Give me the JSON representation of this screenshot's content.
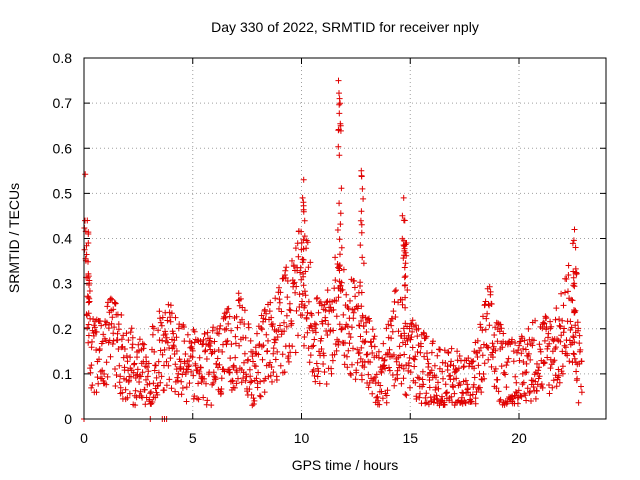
{
  "chart_data": {
    "type": "scatter",
    "title": "Day 330 of 2022, SRMTID for receiver nply",
    "xlabel": "GPS time / hours",
    "ylabel": "SRMTID / TECUs",
    "xlim": [
      0,
      24
    ],
    "ylim": [
      0,
      0.8
    ],
    "x_ticks": [
      0,
      5,
      10,
      15,
      20
    ],
    "y_ticks": [
      0,
      0.1,
      0.2,
      0.3,
      0.4,
      0.5,
      0.6,
      0.7,
      0.8
    ],
    "grid": true,
    "marker": "+",
    "color": "#e00000",
    "series": [
      {
        "name": "SRMTID",
        "envelope": [
          [
            0.0,
            0.44
          ],
          [
            0.1,
            0.35
          ],
          [
            0.3,
            0.15
          ],
          [
            0.6,
            0.13
          ],
          [
            1.0,
            0.14
          ],
          [
            1.3,
            0.2
          ],
          [
            1.6,
            0.15
          ],
          [
            2.0,
            0.12
          ],
          [
            2.5,
            0.11
          ],
          [
            2.8,
            0.1
          ],
          [
            3.2,
            0.12
          ],
          [
            3.5,
            0.16
          ],
          [
            3.9,
            0.17
          ],
          [
            4.3,
            0.13
          ],
          [
            4.8,
            0.12
          ],
          [
            5.3,
            0.1
          ],
          [
            5.8,
            0.11
          ],
          [
            6.3,
            0.13
          ],
          [
            6.8,
            0.16
          ],
          [
            7.2,
            0.18
          ],
          [
            7.7,
            0.1
          ],
          [
            8.1,
            0.13
          ],
          [
            8.5,
            0.17
          ],
          [
            9.0,
            0.2
          ],
          [
            9.5,
            0.24
          ],
          [
            10.0,
            0.3
          ],
          [
            10.3,
            0.27
          ],
          [
            10.6,
            0.18
          ],
          [
            11.0,
            0.16
          ],
          [
            11.4,
            0.2
          ],
          [
            11.7,
            0.3
          ],
          [
            12.0,
            0.2
          ],
          [
            12.4,
            0.2
          ],
          [
            12.8,
            0.18
          ],
          [
            13.2,
            0.12
          ],
          [
            13.6,
            0.08
          ],
          [
            14.0,
            0.13
          ],
          [
            14.4,
            0.2
          ],
          [
            14.8,
            0.14
          ],
          [
            15.3,
            0.12
          ],
          [
            15.8,
            0.1
          ],
          [
            16.3,
            0.08
          ],
          [
            16.8,
            0.08
          ],
          [
            17.3,
            0.07
          ],
          [
            17.8,
            0.06
          ],
          [
            18.2,
            0.12
          ],
          [
            18.6,
            0.2
          ],
          [
            19.0,
            0.13
          ],
          [
            19.5,
            0.1
          ],
          [
            20.0,
            0.09
          ],
          [
            20.5,
            0.13
          ],
          [
            21.0,
            0.14
          ],
          [
            21.5,
            0.15
          ],
          [
            22.0,
            0.18
          ],
          [
            22.3,
            0.25
          ],
          [
            22.6,
            0.14
          ],
          [
            22.9,
            0.1
          ]
        ],
        "peaks": [
          {
            "x": 0.15,
            "y": 0.44
          },
          {
            "x": 0.2,
            "y": 0.41
          },
          {
            "x": 10.1,
            "y": 0.53
          },
          {
            "x": 10.05,
            "y": 0.49
          },
          {
            "x": 11.7,
            "y": 0.75
          },
          {
            "x": 11.75,
            "y": 0.71
          },
          {
            "x": 11.8,
            "y": 0.65
          },
          {
            "x": 12.75,
            "y": 0.55
          },
          {
            "x": 12.8,
            "y": 0.51
          },
          {
            "x": 14.7,
            "y": 0.49
          },
          {
            "x": 14.75,
            "y": 0.44
          },
          {
            "x": 14.8,
            "y": 0.39
          },
          {
            "x": 22.55,
            "y": 0.42
          },
          {
            "x": 22.6,
            "y": 0.38
          }
        ],
        "zero_points": [
          0.0,
          3.05,
          3.6,
          3.7,
          3.8
        ]
      }
    ]
  }
}
